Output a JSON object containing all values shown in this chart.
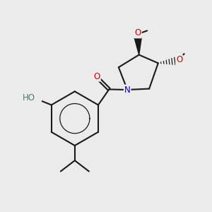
{
  "background_color": "#ebebeb",
  "bond_color": "#1a1a1a",
  "O_color": "#cc0000",
  "N_color": "#0000cc",
  "HO_color": "#4a7a6a",
  "line_width": 1.5,
  "figsize": [
    3.0,
    3.0
  ],
  "dpi": 100,
  "fs": 8.5,
  "xlim": [
    0,
    10
  ],
  "ylim": [
    0,
    10
  ]
}
